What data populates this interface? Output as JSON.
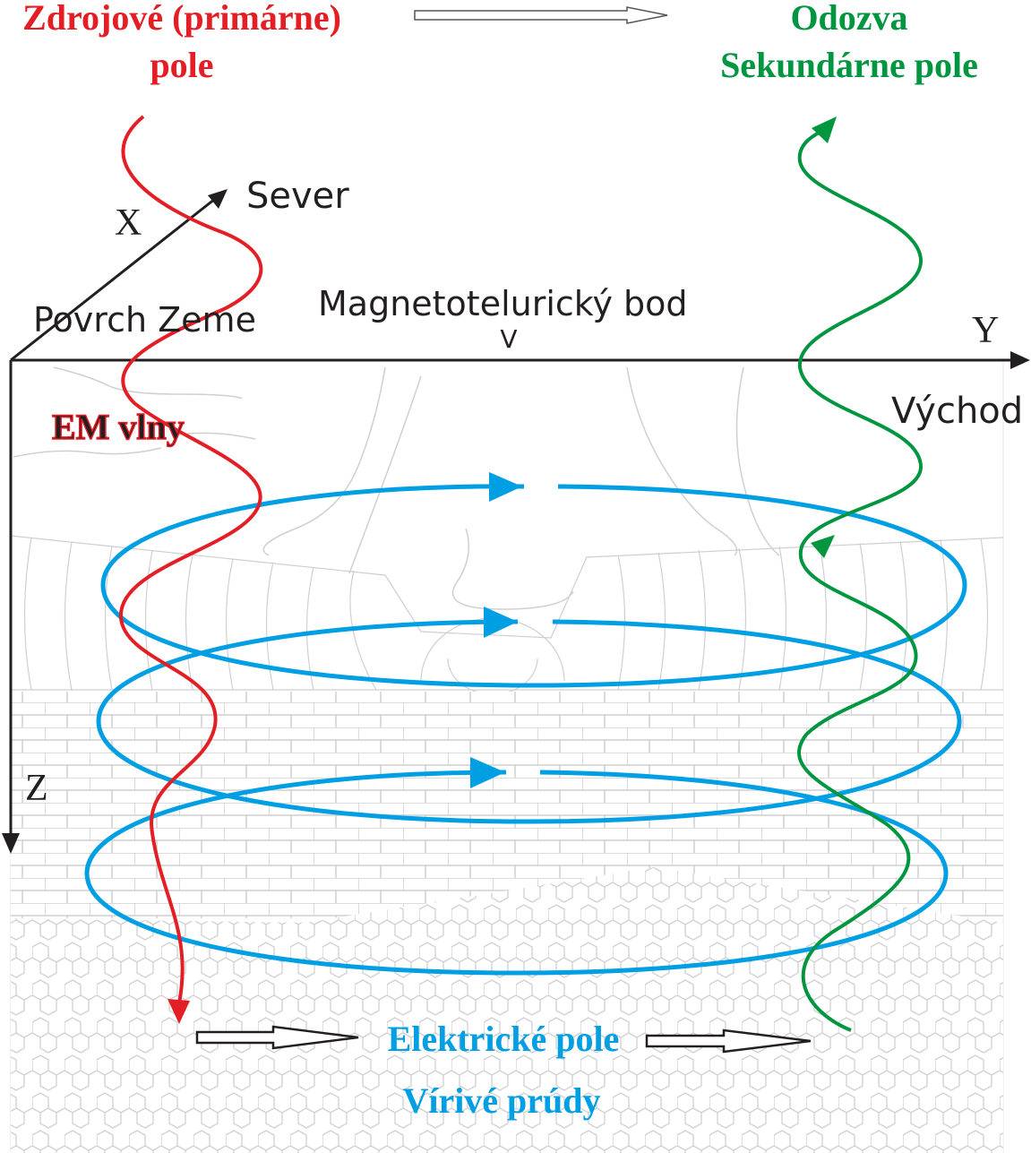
{
  "title_primary": {
    "line1": "Zdrojové (primárne)",
    "line2": "pole",
    "color": "#e31e24"
  },
  "title_secondary": {
    "line1": "Odozva",
    "line2": "Sekundárne pole",
    "color": "#009640"
  },
  "axes": {
    "x": "X",
    "y": "Y",
    "z": "Z",
    "north": "Sever",
    "east": "Východ"
  },
  "labels": {
    "surface": "Povrch Zeme",
    "mt_point": "Magnetotelurický bod",
    "mt_marker": "V",
    "em_waves": "EM vlny",
    "electric_field": "Elektrické pole",
    "eddy_currents": "Vírivé prúdy"
  },
  "colors": {
    "current_loops": "#009fe3",
    "axes": "#231f20",
    "layers": "#c8c8c8"
  }
}
